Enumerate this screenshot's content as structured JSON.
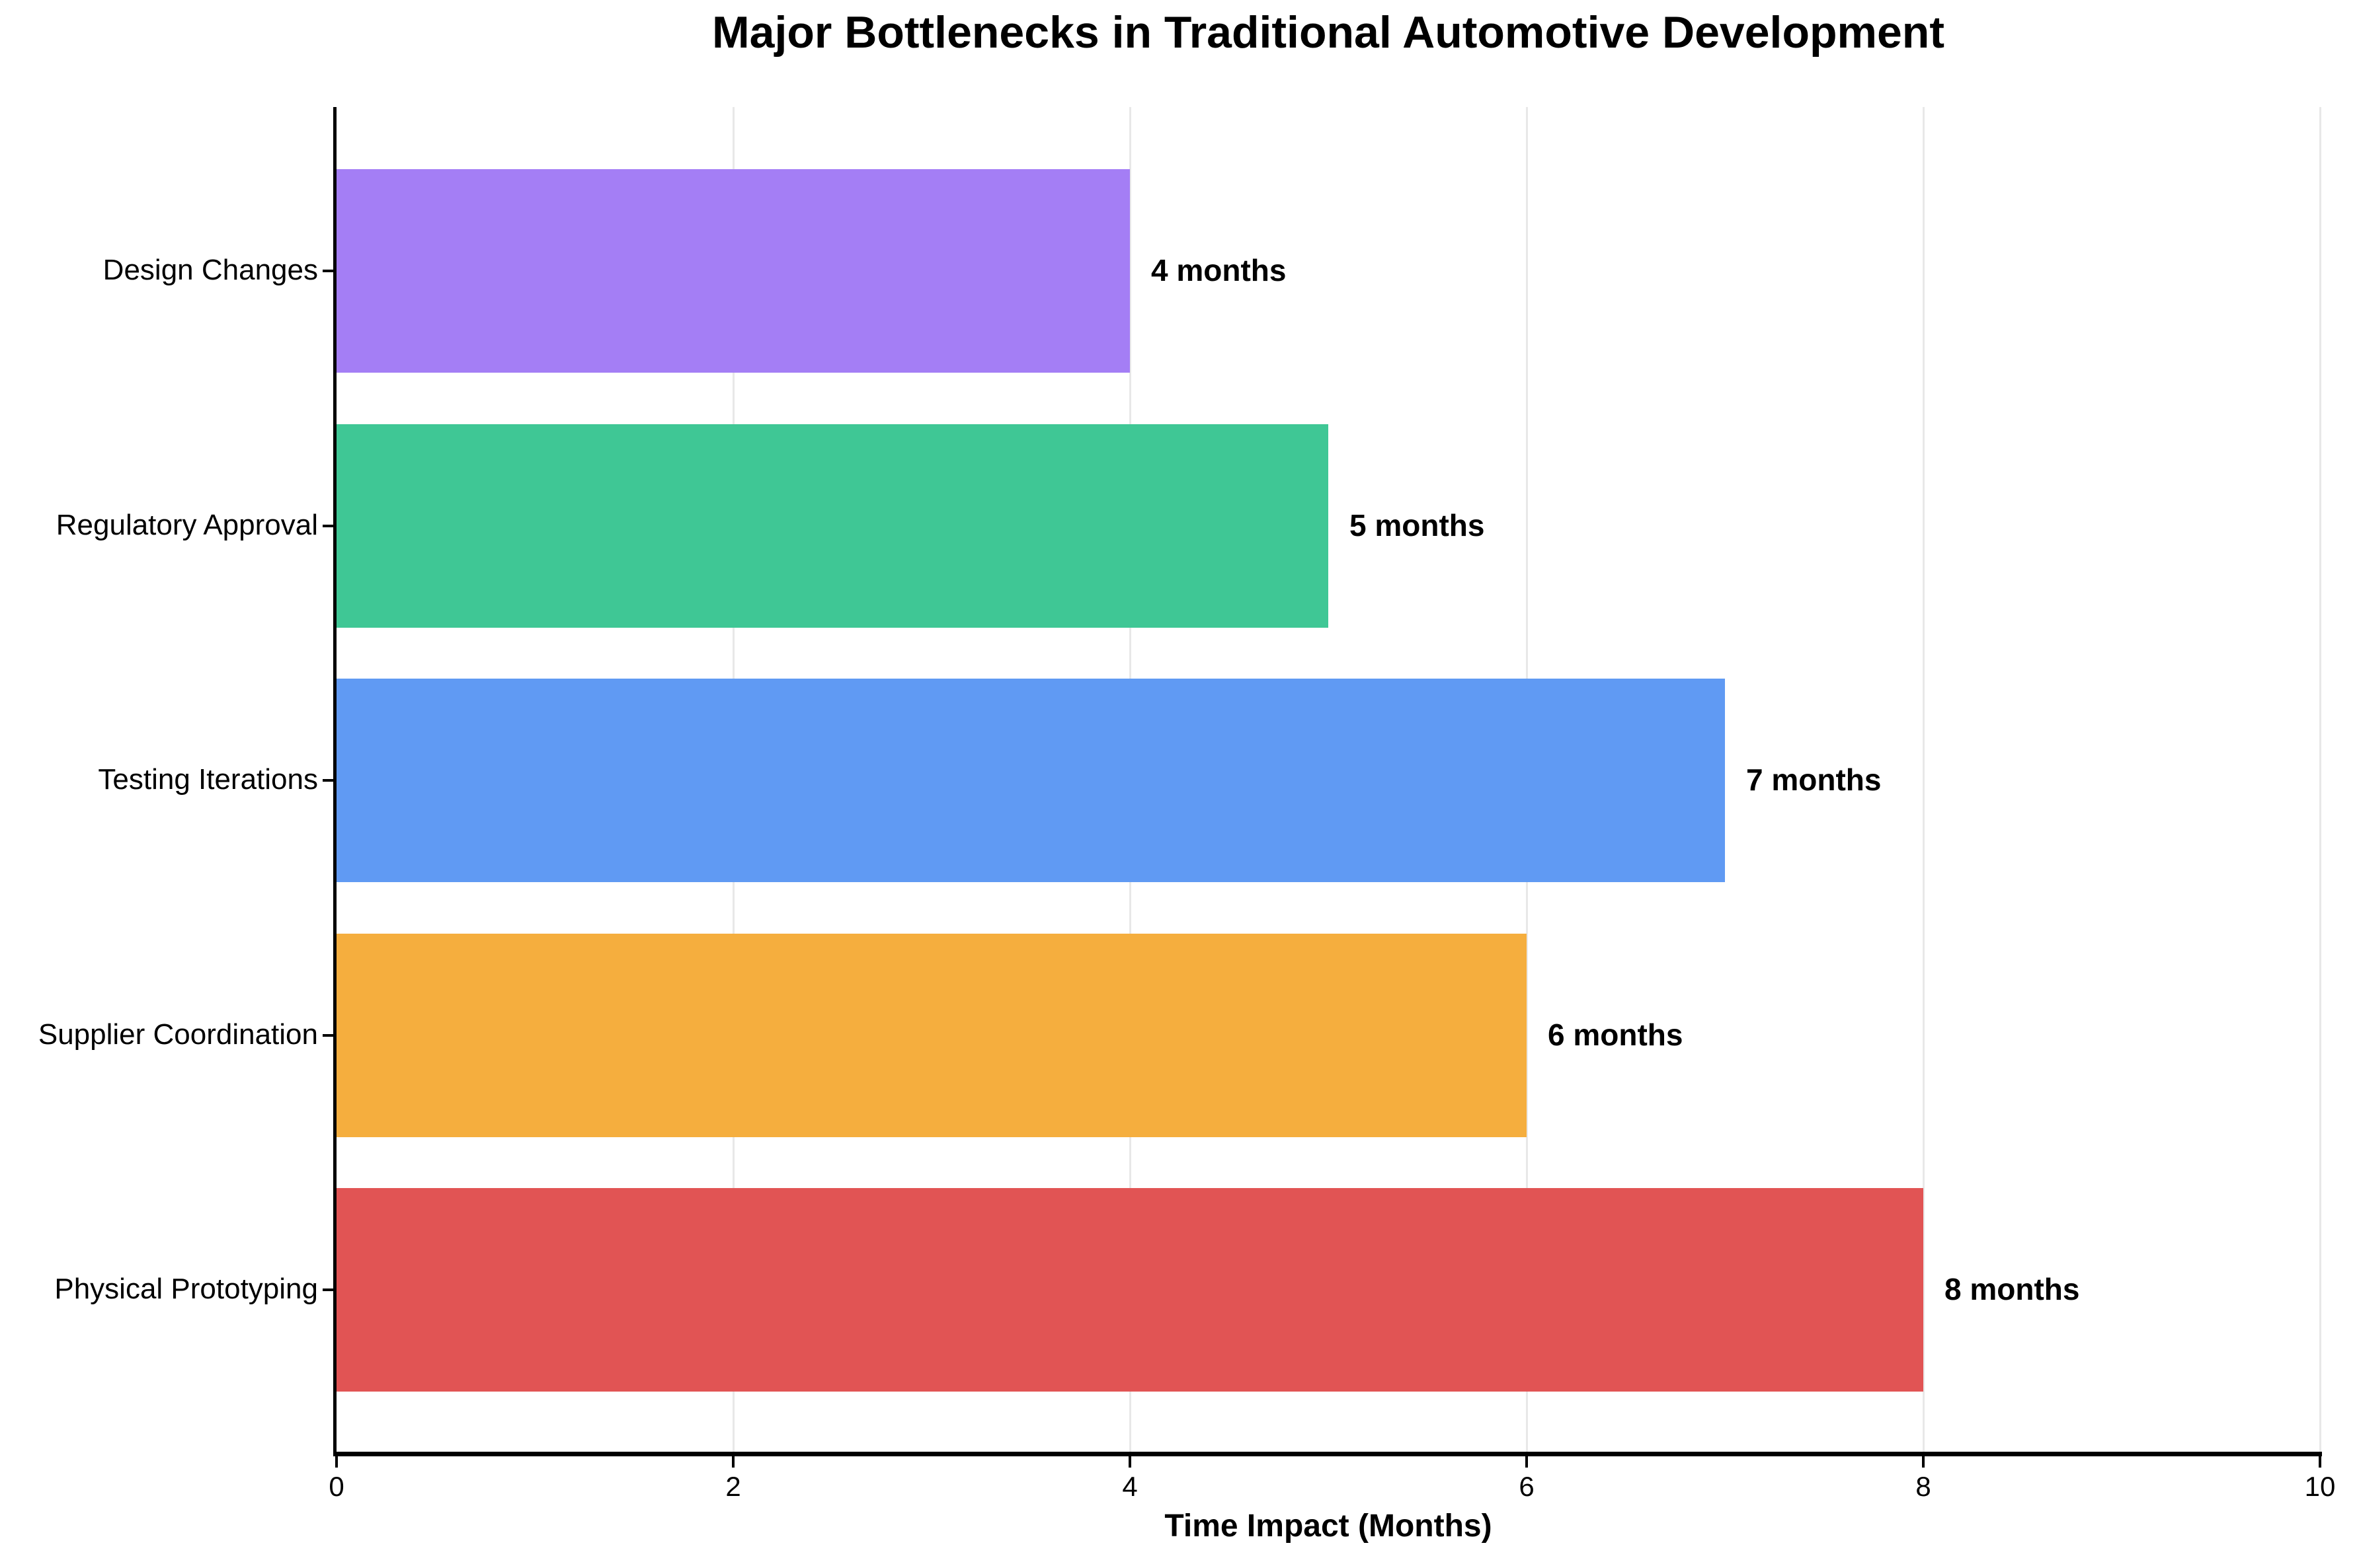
{
  "chart_data": {
    "type": "bar",
    "orientation": "horizontal",
    "title": "Major Bottlenecks in Traditional Automotive Development",
    "xlabel": "Time Impact (Months)",
    "ylabel": "",
    "categories": [
      "Design Changes",
      "Regulatory Approval",
      "Testing Iterations",
      "Supplier Coordination",
      "Physical Prototyping"
    ],
    "values": [
      4,
      5,
      7,
      6,
      8
    ],
    "value_labels": [
      "4 months",
      "5 months",
      "7 months",
      "6 months",
      "8 months"
    ],
    "bar_colors": [
      "#a47ef5",
      "#3fc795",
      "#609af3",
      "#f5ae3e",
      "#e15454"
    ],
    "xlim": [
      0,
      10
    ],
    "xticks": [
      0,
      2,
      4,
      6,
      8,
      10
    ],
    "grid": {
      "vertical": true,
      "horizontal": false,
      "color": "#e8e8e8"
    },
    "legend": "none",
    "axis_color": "#000000",
    "text_color": "#000000",
    "background_color": "#ffffff"
  }
}
